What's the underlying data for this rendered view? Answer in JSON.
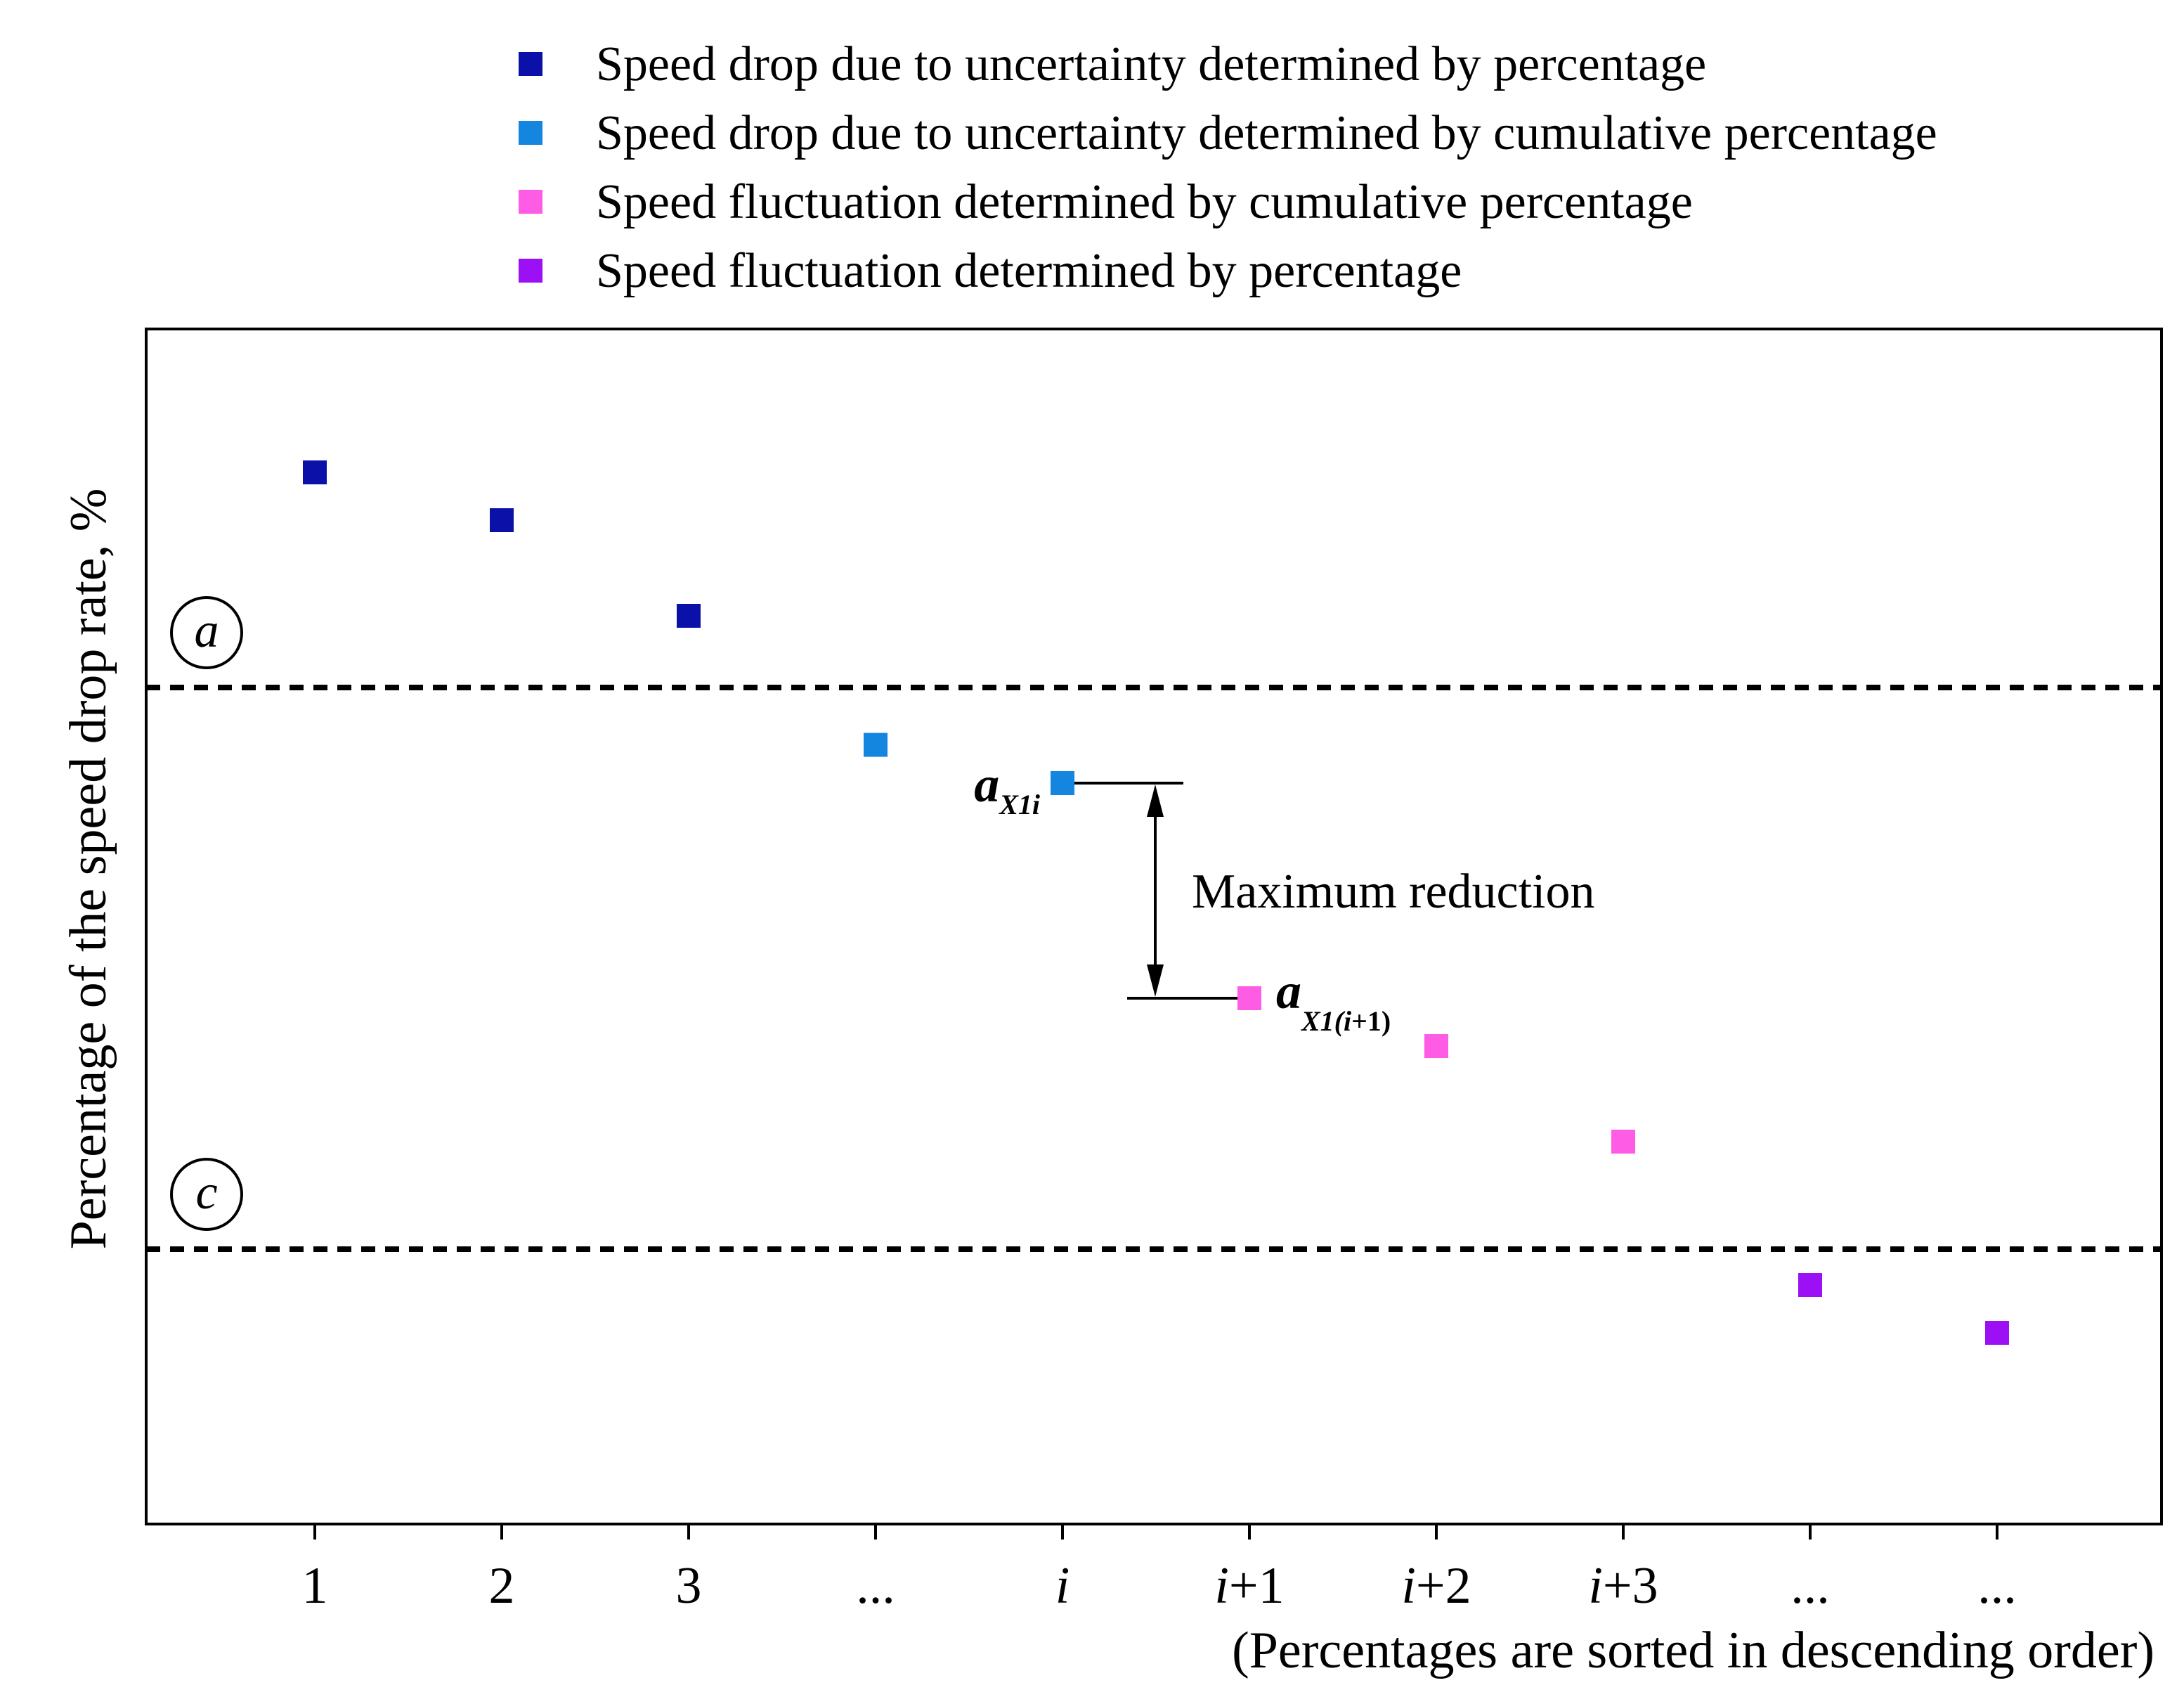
{
  "chart_data": {
    "type": "scatter",
    "title": "",
    "xlabel": "(Percentages are sorted in descending order)",
    "ylabel": "Percentage of the speed drop rate, %",
    "categories": [
      "1",
      "2",
      "3",
      "...",
      "i",
      "i+1",
      "i+2",
      "i+3",
      "...",
      "..."
    ],
    "ylim": [
      0,
      100
    ],
    "grid": false,
    "legend_position": "top",
    "series": [
      {
        "name": "Speed drop due to uncertainty determined by percentage",
        "color": "#0a10a8",
        "points": [
          {
            "x": 1,
            "y": 88
          },
          {
            "x": 2,
            "y": 84
          },
          {
            "x": 3,
            "y": 76
          }
        ]
      },
      {
        "name": "Speed drop due to uncertainty determined by cumulative percentage",
        "color": "#1486e0",
        "points": [
          {
            "x": 4,
            "y": 65.2
          },
          {
            "x": 5,
            "y": 62
          }
        ]
      },
      {
        "name": "Speed fluctuation determined by cumulative percentage",
        "color": "#ff5ce6",
        "points": [
          {
            "x": 6,
            "y": 44
          },
          {
            "x": 7,
            "y": 40
          },
          {
            "x": 8,
            "y": 32
          }
        ]
      },
      {
        "name": "Speed fluctuation determined by percentage",
        "color": "#9b10f5",
        "points": [
          {
            "x": 9,
            "y": 20
          },
          {
            "x": 10,
            "y": 16
          }
        ]
      }
    ],
    "thresholds": [
      {
        "label": "a",
        "y": 70
      },
      {
        "label": "c",
        "y": 23
      }
    ],
    "annotation": {
      "text": "Maximum reduction",
      "from_y": 62,
      "to_y": 44,
      "upper_label": {
        "main": "a",
        "sub": "X1i"
      },
      "lower_label": {
        "main": "a",
        "sub_prefix": "X1(",
        "sub_italic": "i",
        "sub_suffix": "+1)"
      }
    }
  }
}
